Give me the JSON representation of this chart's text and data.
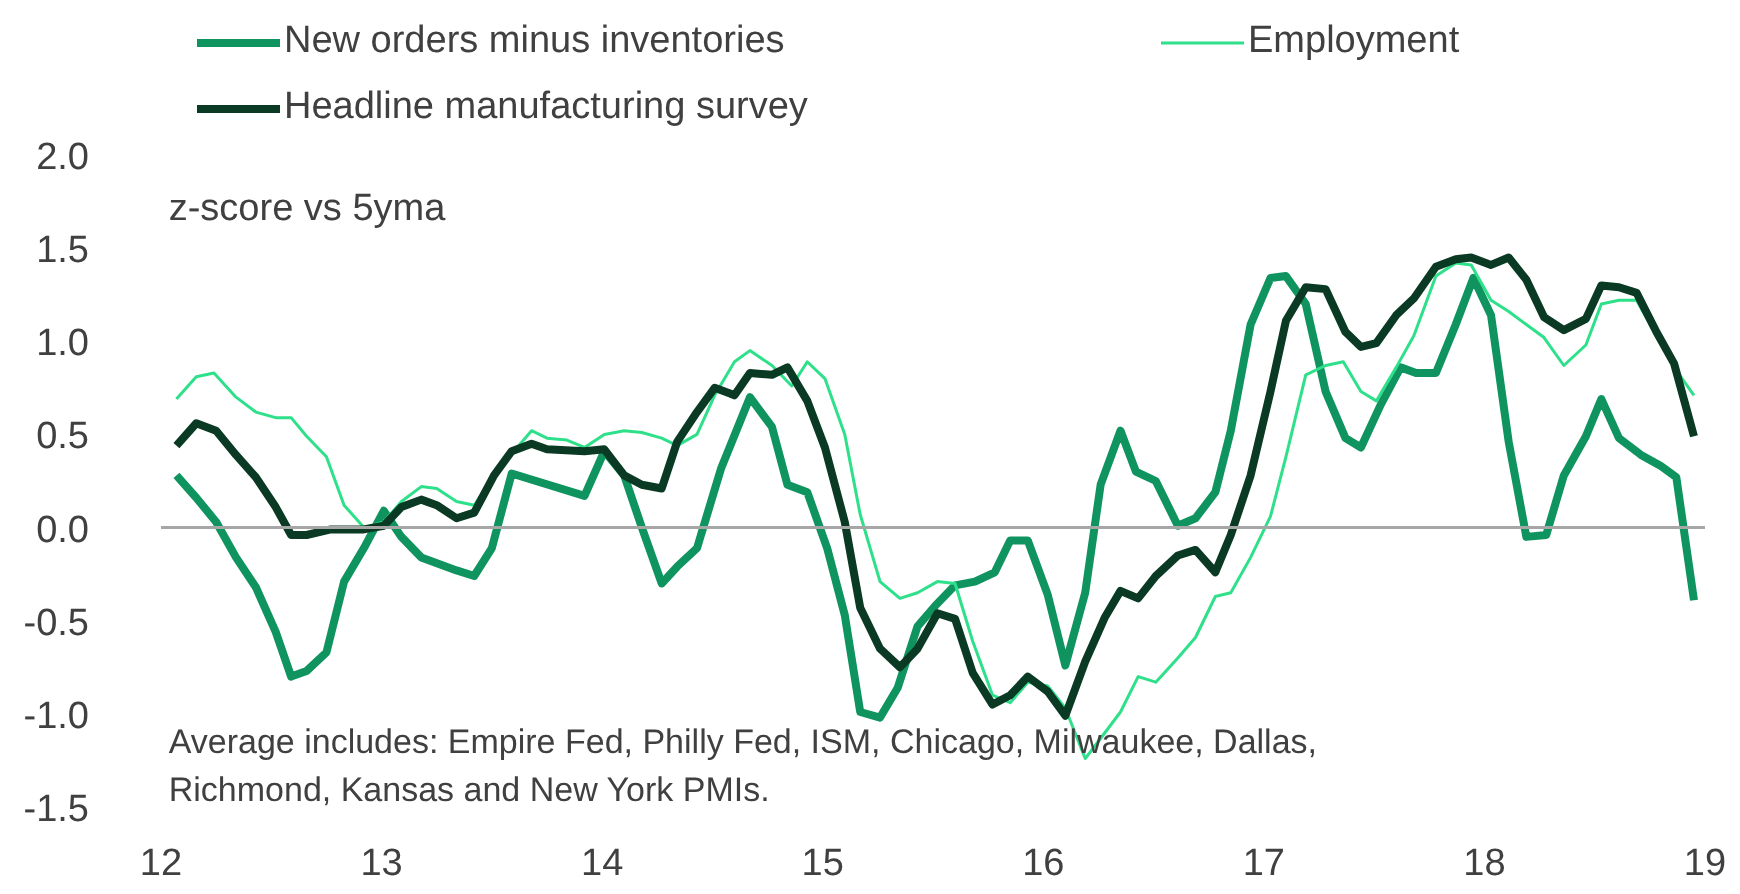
{
  "chart_data": {
    "type": "line",
    "xlim": [
      12,
      19
    ],
    "xticks": [
      12,
      13,
      14,
      15,
      16,
      17,
      18,
      19
    ],
    "ylim": [
      -1.5,
      2.0
    ],
    "yticks": [
      {
        "value": -1.5,
        "label": "-1.5"
      },
      {
        "value": -1.0,
        "label": "-1.0"
      },
      {
        "value": -0.5,
        "label": "-0.5"
      },
      {
        "value": 0.0,
        "label": "0.0"
      },
      {
        "value": 0.5,
        "label": "0.5"
      },
      {
        "value": 1.0,
        "label": "1.0"
      },
      {
        "value": 1.5,
        "label": "1.5"
      },
      {
        "value": 2.0,
        "label": "2.0"
      }
    ],
    "grid": false,
    "legend": "top",
    "marker": "none",
    "line_style": "solid",
    "ref_lines": [
      {
        "axis": "y",
        "value": 0,
        "label": null,
        "color": "#a6a6a6"
      }
    ],
    "annotations": [
      "z-score vs 5yma",
      "Average includes: Empire Fed, Philly Fed, ISM, Chicago, Milwaukee, Dallas,\nRichmond, Kansas and New York PMIs."
    ],
    "series": [
      {
        "name": "New orders minus inventories",
        "color": "#0f9460",
        "x": [
          12.07,
          12.16,
          12.25,
          12.34,
          12.43,
          12.52,
          12.59,
          12.66,
          12.75,
          12.83,
          12.92,
          13.01,
          13.09,
          13.18,
          13.34,
          13.42,
          13.5,
          13.59,
          13.92,
          14.01,
          14.1,
          14.18,
          14.27,
          14.34,
          14.43,
          14.54,
          14.67,
          14.77,
          14.84,
          14.93,
          15.02,
          15.1,
          15.17,
          15.26,
          15.34,
          15.43,
          15.51,
          15.6,
          15.69,
          15.78,
          15.85,
          15.93,
          16.02,
          16.1,
          16.19,
          16.26,
          16.35,
          16.42,
          16.51,
          16.61,
          16.69,
          16.78,
          16.85,
          16.94,
          17.03,
          17.1,
          17.19,
          17.28,
          17.37,
          17.44,
          17.53,
          17.62,
          17.69,
          17.78,
          17.87,
          17.95,
          18.03,
          18.11,
          18.19,
          18.28,
          18.36,
          18.46,
          18.53,
          18.61,
          18.71,
          18.8,
          18.87,
          18.95
        ],
        "values": [
          0.28,
          0.16,
          0.03,
          -0.16,
          -0.32,
          -0.56,
          -0.8,
          -0.77,
          -0.67,
          -0.29,
          -0.11,
          0.09,
          -0.05,
          -0.16,
          -0.23,
          -0.26,
          -0.11,
          0.29,
          0.17,
          0.41,
          0.28,
          0.0,
          -0.3,
          -0.21,
          -0.11,
          0.32,
          0.7,
          0.54,
          0.23,
          0.19,
          -0.11,
          -0.47,
          -0.99,
          -1.02,
          -0.86,
          -0.53,
          -0.42,
          -0.31,
          -0.29,
          -0.24,
          -0.07,
          -0.07,
          -0.36,
          -0.74,
          -0.35,
          0.23,
          0.52,
          0.3,
          0.25,
          0.01,
          0.05,
          0.19,
          0.52,
          1.09,
          1.34,
          1.35,
          1.2,
          0.73,
          0.48,
          0.43,
          0.66,
          0.86,
          0.83,
          0.83,
          1.09,
          1.34,
          1.14,
          0.46,
          -0.05,
          -0.04,
          0.28,
          0.49,
          0.69,
          0.48,
          0.39,
          0.33,
          0.27,
          -0.39
        ]
      },
      {
        "name": "Employment",
        "color": "#2ee08a",
        "x": [
          12.07,
          12.16,
          12.24,
          12.34,
          12.43,
          12.52,
          12.59,
          12.66,
          12.75,
          12.83,
          12.92,
          13.01,
          13.09,
          13.18,
          13.25,
          13.34,
          13.42,
          13.51,
          13.6,
          13.68,
          13.75,
          13.84,
          13.92,
          14.01,
          14.1,
          14.18,
          14.27,
          14.34,
          14.43,
          14.51,
          14.6,
          14.67,
          14.77,
          14.86,
          14.93,
          15.01,
          15.1,
          15.17,
          15.26,
          15.35,
          15.43,
          15.52,
          15.6,
          15.68,
          15.77,
          15.85,
          15.93,
          16.02,
          16.1,
          16.19,
          16.28,
          16.35,
          16.43,
          16.51,
          16.61,
          16.69,
          16.78,
          16.85,
          16.94,
          17.03,
          17.1,
          17.19,
          17.28,
          17.36,
          17.44,
          17.51,
          17.6,
          17.68,
          17.78,
          17.87,
          17.94,
          18.03,
          18.11,
          18.19,
          18.27,
          18.36,
          18.46,
          18.53,
          18.61,
          18.69,
          18.78,
          18.86,
          18.95
        ],
        "values": [
          0.69,
          0.81,
          0.83,
          0.7,
          0.62,
          0.59,
          0.59,
          0.49,
          0.38,
          0.12,
          0.0,
          0.03,
          0.14,
          0.22,
          0.21,
          0.14,
          0.12,
          0.28,
          0.41,
          0.52,
          0.48,
          0.47,
          0.43,
          0.5,
          0.52,
          0.51,
          0.48,
          0.44,
          0.5,
          0.71,
          0.89,
          0.95,
          0.87,
          0.76,
          0.89,
          0.8,
          0.5,
          0.07,
          -0.29,
          -0.38,
          -0.35,
          -0.29,
          -0.3,
          -0.61,
          -0.9,
          -0.94,
          -0.83,
          -0.85,
          -0.97,
          -1.24,
          -1.1,
          -0.99,
          -0.8,
          -0.83,
          -0.7,
          -0.59,
          -0.37,
          -0.35,
          -0.16,
          0.06,
          0.38,
          0.82,
          0.87,
          0.89,
          0.73,
          0.68,
          0.86,
          1.03,
          1.35,
          1.42,
          1.41,
          1.22,
          1.16,
          1.09,
          1.02,
          0.87,
          0.98,
          1.2,
          1.22,
          1.22,
          1.03,
          0.86,
          0.71
        ]
      },
      {
        "name": "Headline manufacturing survey",
        "color": "#0a3a24",
        "x": [
          12.07,
          12.16,
          12.25,
          12.34,
          12.43,
          12.52,
          12.59,
          12.66,
          12.77,
          12.92,
          13.01,
          13.09,
          13.18,
          13.25,
          13.34,
          13.42,
          13.51,
          13.59,
          13.68,
          13.75,
          13.92,
          14.01,
          14.1,
          14.18,
          14.27,
          14.34,
          14.43,
          14.51,
          14.58,
          14.6,
          14.67,
          14.77,
          14.84,
          14.93,
          15.01,
          15.1,
          15.17,
          15.26,
          15.35,
          15.43,
          15.52,
          15.6,
          15.68,
          15.77,
          15.85,
          15.93,
          16.02,
          16.1,
          16.19,
          16.28,
          16.35,
          16.43,
          16.51,
          16.61,
          16.69,
          16.78,
          16.85,
          16.94,
          17.03,
          17.1,
          17.19,
          17.28,
          17.37,
          17.44,
          17.51,
          17.6,
          17.68,
          17.78,
          17.87,
          17.94,
          18.03,
          18.11,
          18.19,
          18.27,
          18.36,
          18.46,
          18.53,
          18.61,
          18.69,
          18.78,
          18.86,
          18.95
        ],
        "values": [
          0.44,
          0.56,
          0.52,
          0.39,
          0.27,
          0.11,
          -0.04,
          -0.04,
          -0.01,
          -0.01,
          0.01,
          0.11,
          0.15,
          0.12,
          0.05,
          0.08,
          0.28,
          0.41,
          0.45,
          0.42,
          0.41,
          0.42,
          0.28,
          0.23,
          0.21,
          0.46,
          0.62,
          0.75,
          0.72,
          0.71,
          0.83,
          0.82,
          0.86,
          0.68,
          0.43,
          0.03,
          -0.43,
          -0.65,
          -0.75,
          -0.65,
          -0.46,
          -0.49,
          -0.78,
          -0.95,
          -0.9,
          -0.8,
          -0.88,
          -1.01,
          -0.72,
          -0.48,
          -0.34,
          -0.38,
          -0.26,
          -0.15,
          -0.12,
          -0.24,
          -0.04,
          0.28,
          0.73,
          1.11,
          1.29,
          1.28,
          1.05,
          0.97,
          0.99,
          1.14,
          1.23,
          1.4,
          1.44,
          1.45,
          1.41,
          1.45,
          1.33,
          1.13,
          1.06,
          1.12,
          1.3,
          1.29,
          1.26,
          1.05,
          0.88,
          0.49
        ]
      }
    ]
  }
}
